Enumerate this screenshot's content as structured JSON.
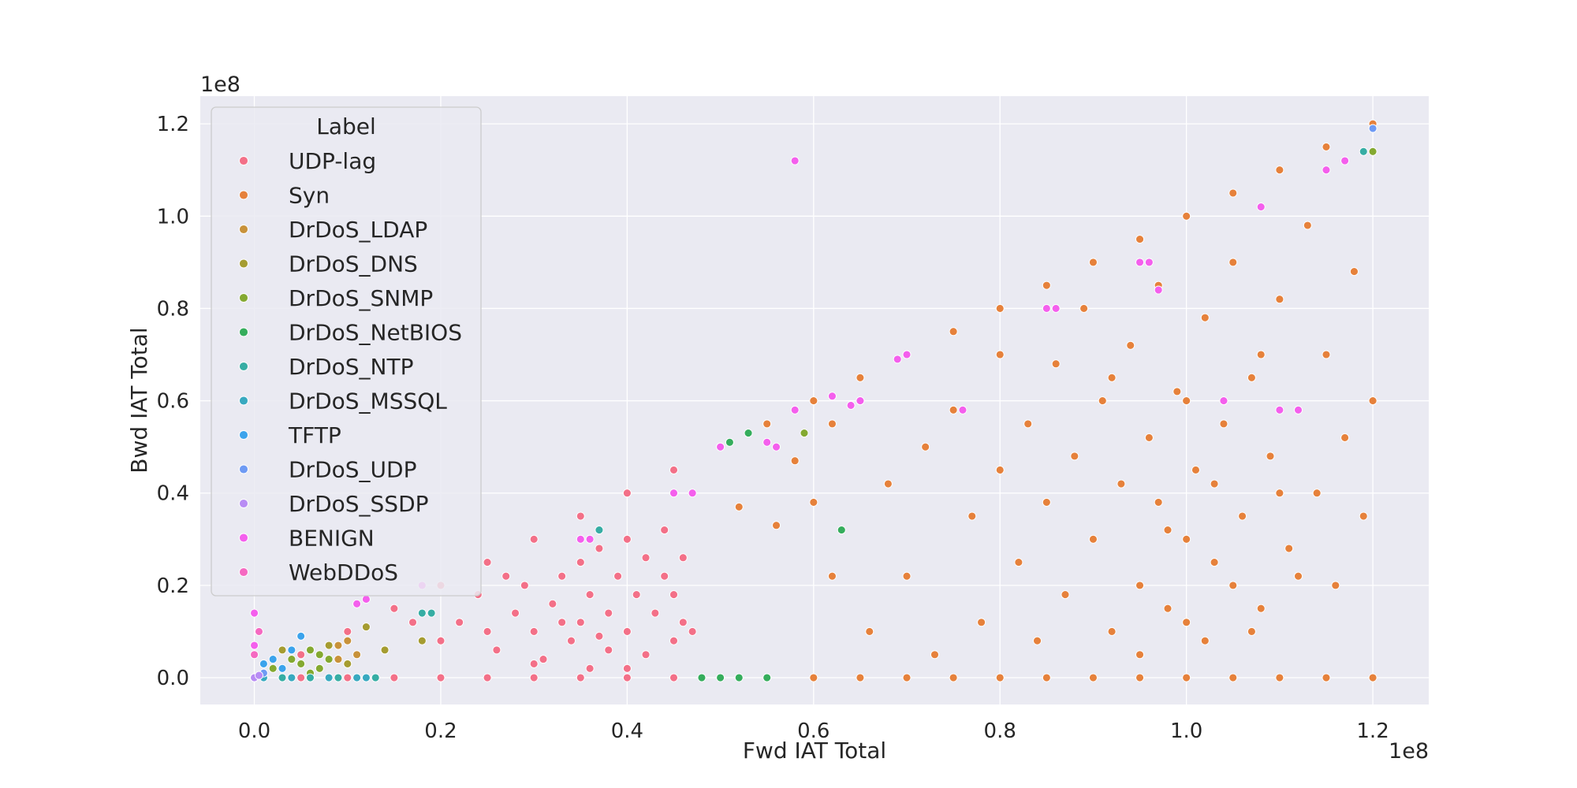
{
  "chart_data": {
    "type": "scatter",
    "title": "",
    "xlabel": "Fwd IAT Total",
    "ylabel": "Bwd IAT Total",
    "x_scale_label": "1e8",
    "y_scale_label": "1e8",
    "xlim": [
      -0.058,
      1.26
    ],
    "ylim": [
      -0.058,
      1.26
    ],
    "x_ticks": [
      0.0,
      0.2,
      0.4,
      0.6,
      0.8,
      1.0,
      1.2
    ],
    "x_tick_labels": [
      "0.0",
      "0.2",
      "0.4",
      "0.6",
      "0.8",
      "1.0",
      "1.2"
    ],
    "y_ticks": [
      0.0,
      0.2,
      0.4,
      0.6,
      0.8,
      1.0,
      1.2
    ],
    "y_tick_labels": [
      "0.0",
      "0.2",
      "0.4",
      "0.6",
      "0.8",
      "1.0",
      "1.2"
    ],
    "grid": true,
    "legend": {
      "title": "Label",
      "position": "upper-left"
    },
    "series": [
      {
        "name": "UDP-lag",
        "color": "#f37088",
        "points": [
          [
            0.14,
            0.06
          ],
          [
            0.17,
            0.12
          ],
          [
            0.2,
            0.08
          ],
          [
            0.22,
            0.12
          ],
          [
            0.24,
            0.18
          ],
          [
            0.26,
            0.06
          ],
          [
            0.28,
            0.14
          ],
          [
            0.29,
            0.2
          ],
          [
            0.3,
            0.1
          ],
          [
            0.31,
            0.04
          ],
          [
            0.32,
            0.16
          ],
          [
            0.33,
            0.22
          ],
          [
            0.34,
            0.08
          ],
          [
            0.35,
            0.12
          ],
          [
            0.35,
            0.25
          ],
          [
            0.36,
            0.18
          ],
          [
            0.37,
            0.28
          ],
          [
            0.38,
            0.06
          ],
          [
            0.38,
            0.14
          ],
          [
            0.39,
            0.22
          ],
          [
            0.4,
            0.3
          ],
          [
            0.4,
            0.1
          ],
          [
            0.41,
            0.18
          ],
          [
            0.42,
            0.26
          ],
          [
            0.42,
            0.05
          ],
          [
            0.43,
            0.14
          ],
          [
            0.44,
            0.22
          ],
          [
            0.44,
            0.32
          ],
          [
            0.45,
            0.08
          ],
          [
            0.45,
            0.18
          ],
          [
            0.46,
            0.12
          ],
          [
            0.46,
            0.26
          ],
          [
            0.47,
            0.1
          ],
          [
            0.3,
            0.03
          ],
          [
            0.36,
            0.02
          ],
          [
            0.4,
            0.02
          ],
          [
            0.25,
            0.1
          ],
          [
            0.27,
            0.22
          ],
          [
            0.33,
            0.12
          ],
          [
            0.37,
            0.09
          ],
          [
            0.0,
            0.0
          ],
          [
            0.05,
            0.0
          ],
          [
            0.1,
            0.0
          ],
          [
            0.15,
            0.0
          ],
          [
            0.2,
            0.0
          ],
          [
            0.25,
            0.0
          ],
          [
            0.3,
            0.0
          ],
          [
            0.35,
            0.0
          ],
          [
            0.4,
            0.0
          ],
          [
            0.45,
            0.0
          ],
          [
            0.05,
            0.05
          ],
          [
            0.1,
            0.1
          ],
          [
            0.15,
            0.15
          ],
          [
            0.2,
            0.2
          ],
          [
            0.25,
            0.25
          ],
          [
            0.3,
            0.3
          ],
          [
            0.35,
            0.35
          ],
          [
            0.4,
            0.4
          ],
          [
            0.45,
            0.45
          ]
        ]
      },
      {
        "name": "Syn",
        "color": "#e6813b",
        "points": [
          [
            0.52,
            0.37
          ],
          [
            0.55,
            0.55
          ],
          [
            0.56,
            0.33
          ],
          [
            0.58,
            0.47
          ],
          [
            0.6,
            0.38
          ],
          [
            0.62,
            0.55
          ],
          [
            0.62,
            0.22
          ],
          [
            0.65,
            0.6
          ],
          [
            0.66,
            0.1
          ],
          [
            0.68,
            0.42
          ],
          [
            0.7,
            0.22
          ],
          [
            0.72,
            0.5
          ],
          [
            0.73,
            0.05
          ],
          [
            0.75,
            0.58
          ],
          [
            0.77,
            0.35
          ],
          [
            0.78,
            0.12
          ],
          [
            0.8,
            0.45
          ],
          [
            0.8,
            0.7
          ],
          [
            0.82,
            0.25
          ],
          [
            0.83,
            0.55
          ],
          [
            0.84,
            0.08
          ],
          [
            0.85,
            0.38
          ],
          [
            0.86,
            0.68
          ],
          [
            0.87,
            0.18
          ],
          [
            0.88,
            0.48
          ],
          [
            0.89,
            0.8
          ],
          [
            0.9,
            0.3
          ],
          [
            0.91,
            0.6
          ],
          [
            0.92,
            0.1
          ],
          [
            0.93,
            0.42
          ],
          [
            0.94,
            0.72
          ],
          [
            0.95,
            0.2
          ],
          [
            0.96,
            0.52
          ],
          [
            0.97,
            0.85
          ],
          [
            0.98,
            0.32
          ],
          [
            0.99,
            0.62
          ],
          [
            1.0,
            0.12
          ],
          [
            1.01,
            0.45
          ],
          [
            1.02,
            0.78
          ],
          [
            1.03,
            0.25
          ],
          [
            1.04,
            0.55
          ],
          [
            1.05,
            0.9
          ],
          [
            1.06,
            0.35
          ],
          [
            1.07,
            0.65
          ],
          [
            1.08,
            0.15
          ],
          [
            1.09,
            0.48
          ],
          [
            1.1,
            0.82
          ],
          [
            1.11,
            0.28
          ],
          [
            1.12,
            0.58
          ],
          [
            1.13,
            0.98
          ],
          [
            1.14,
            0.4
          ],
          [
            1.15,
            0.7
          ],
          [
            1.16,
            0.2
          ],
          [
            1.17,
            0.52
          ],
          [
            1.18,
            0.88
          ],
          [
            1.19,
            0.35
          ],
          [
            1.2,
            0.6
          ],
          [
            0.95,
            0.05
          ],
          [
            1.0,
            0.3
          ],
          [
            1.05,
            0.2
          ],
          [
            1.1,
            0.4
          ],
          [
            1.0,
            0.6
          ],
          [
            0.98,
            0.15
          ],
          [
            1.03,
            0.42
          ],
          [
            1.07,
            0.1
          ],
          [
            1.12,
            0.22
          ],
          [
            0.92,
            0.65
          ],
          [
            0.97,
            0.38
          ],
          [
            1.02,
            0.08
          ],
          [
            1.08,
            0.7
          ],
          [
            0.55,
            0.0
          ],
          [
            0.6,
            0.0
          ],
          [
            0.65,
            0.0
          ],
          [
            0.7,
            0.0
          ],
          [
            0.75,
            0.0
          ],
          [
            0.8,
            0.0
          ],
          [
            0.85,
            0.0
          ],
          [
            0.9,
            0.0
          ],
          [
            0.95,
            0.0
          ],
          [
            1.0,
            0.0
          ],
          [
            1.05,
            0.0
          ],
          [
            1.1,
            0.0
          ],
          [
            1.15,
            0.0
          ],
          [
            1.2,
            0.0
          ],
          [
            0.5,
            0.5
          ],
          [
            0.55,
            0.55
          ],
          [
            0.6,
            0.6
          ],
          [
            0.65,
            0.65
          ],
          [
            0.7,
            0.7
          ],
          [
            0.75,
            0.75
          ],
          [
            0.8,
            0.8
          ],
          [
            0.85,
            0.85
          ],
          [
            0.9,
            0.9
          ],
          [
            0.95,
            0.95
          ],
          [
            1.0,
            1.0
          ],
          [
            1.05,
            1.05
          ],
          [
            1.1,
            1.1
          ],
          [
            1.15,
            1.15
          ],
          [
            1.2,
            1.2
          ]
        ]
      },
      {
        "name": "DrDoS_LDAP",
        "color": "#c8923a",
        "points": [
          [
            0.09,
            0.04
          ],
          [
            0.1,
            0.08
          ],
          [
            0.1,
            0.03
          ],
          [
            0.09,
            0.07
          ],
          [
            0.11,
            0.05
          ]
        ]
      },
      {
        "name": "DrDoS_DNS",
        "color": "#a59c31",
        "points": [
          [
            0.03,
            0.06
          ],
          [
            0.05,
            0.09
          ],
          [
            0.07,
            0.02
          ],
          [
            0.08,
            0.07
          ],
          [
            0.1,
            0.03
          ],
          [
            0.12,
            0.11
          ],
          [
            0.14,
            0.06
          ],
          [
            0.18,
            0.08
          ]
        ]
      },
      {
        "name": "DrDoS_SNMP",
        "color": "#84a931",
        "points": [
          [
            0.02,
            0.02
          ],
          [
            0.04,
            0.04
          ],
          [
            0.05,
            0.03
          ],
          [
            0.06,
            0.06
          ],
          [
            0.07,
            0.05
          ],
          [
            0.07,
            0.02
          ],
          [
            0.08,
            0.04
          ],
          [
            0.06,
            0.01
          ],
          [
            0.59,
            0.53
          ],
          [
            1.2,
            1.14
          ]
        ]
      },
      {
        "name": "DrDoS_NetBIOS",
        "color": "#35ad5c",
        "points": [
          [
            0.5,
            0.0
          ],
          [
            0.52,
            0.0
          ],
          [
            0.48,
            0.0
          ],
          [
            0.53,
            0.53
          ],
          [
            0.55,
            0.0
          ],
          [
            0.63,
            0.32
          ],
          [
            0.51,
            0.51
          ]
        ]
      },
      {
        "name": "DrDoS_NTP",
        "color": "#36ada4",
        "points": [
          [
            0.0,
            0.0
          ],
          [
            0.03,
            0.0
          ],
          [
            0.06,
            0.0
          ],
          [
            0.09,
            0.0
          ],
          [
            0.13,
            0.0
          ],
          [
            0.19,
            0.14
          ],
          [
            0.18,
            0.14
          ],
          [
            0.37,
            0.32
          ],
          [
            1.19,
            1.14
          ]
        ]
      },
      {
        "name": "DrDoS_MSSQL",
        "color": "#38a9c0",
        "points": [
          [
            0.01,
            0.0
          ],
          [
            0.04,
            0.0
          ],
          [
            0.08,
            0.0
          ],
          [
            0.11,
            0.0
          ],
          [
            0.12,
            0.0
          ]
        ]
      },
      {
        "name": "TFTP",
        "color": "#3ba3ec",
        "points": [
          [
            0.02,
            0.04
          ],
          [
            0.05,
            0.09
          ],
          [
            0.04,
            0.06
          ],
          [
            0.03,
            0.02
          ],
          [
            0.01,
            0.03
          ]
        ]
      },
      {
        "name": "DrDoS_UDP",
        "color": "#6e9af4",
        "points": [
          [
            0.0,
            0.0
          ],
          [
            0.01,
            0.01
          ],
          [
            1.2,
            1.19
          ]
        ]
      },
      {
        "name": "DrDoS_SSDP",
        "color": "#b88cf4",
        "points": [
          [
            0.0,
            0.0
          ],
          [
            0.005,
            0.005
          ]
        ]
      },
      {
        "name": "BENIGN",
        "color": "#f45fed",
        "points": [
          [
            0.0,
            0.07
          ],
          [
            0.0,
            0.14
          ],
          [
            0.11,
            0.16
          ],
          [
            0.12,
            0.17
          ],
          [
            0.18,
            0.2
          ],
          [
            0.35,
            0.3
          ],
          [
            0.36,
            0.3
          ],
          [
            0.45,
            0.4
          ],
          [
            0.47,
            0.4
          ],
          [
            0.5,
            0.5
          ],
          [
            0.55,
            0.51
          ],
          [
            0.56,
            0.5
          ],
          [
            0.58,
            1.12
          ],
          [
            0.58,
            0.58
          ],
          [
            0.62,
            0.61
          ],
          [
            0.64,
            0.59
          ],
          [
            0.65,
            0.6
          ],
          [
            0.69,
            0.69
          ],
          [
            0.7,
            0.7
          ],
          [
            0.76,
            0.58
          ],
          [
            0.85,
            0.8
          ],
          [
            0.86,
            0.8
          ],
          [
            0.95,
            0.9
          ],
          [
            0.96,
            0.9
          ],
          [
            0.97,
            0.84
          ],
          [
            1.04,
            0.6
          ],
          [
            1.08,
            1.02
          ],
          [
            1.1,
            0.58
          ],
          [
            1.12,
            0.58
          ],
          [
            1.15,
            1.1
          ],
          [
            1.17,
            1.12
          ]
        ]
      },
      {
        "name": "WebDDoS",
        "color": "#f569c1",
        "points": [
          [
            0.0,
            0.05
          ],
          [
            0.005,
            0.1
          ]
        ]
      }
    ]
  }
}
